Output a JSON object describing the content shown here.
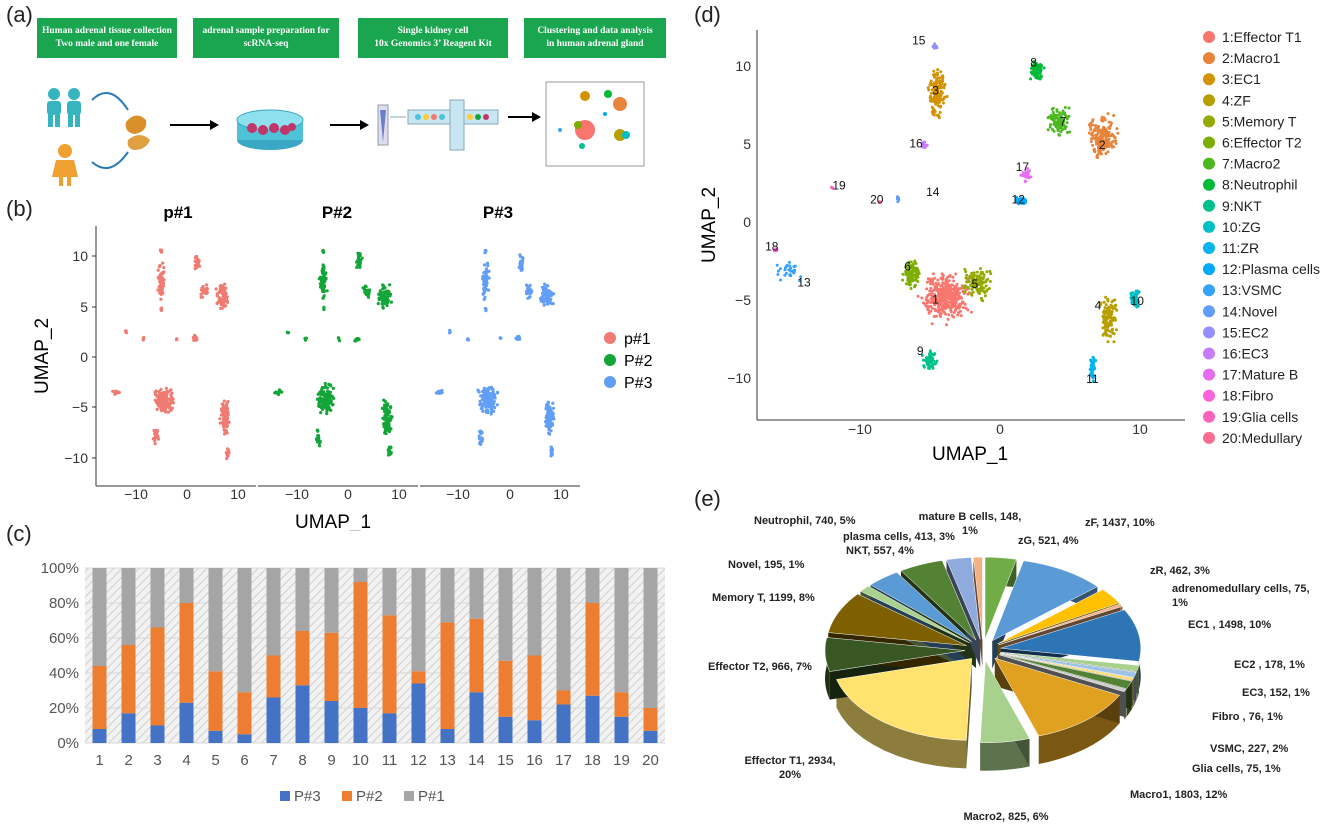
{
  "panels": {
    "a": "(a)",
    "b": "(b)",
    "c": "(c)",
    "d": "(d)",
    "e": "(e)"
  },
  "panel_a": {
    "steps": [
      {
        "line1": "Human adrenal tissue collection",
        "line2": "Two male and one female"
      },
      {
        "line1": "adrenal sample preparation for",
        "line2": "scRNA-seq"
      },
      {
        "line1": "Single kidney cell",
        "line2": "10x Genomics 3’ Reagent Kit"
      },
      {
        "line1": "Clustering and data analysis",
        "line2": "in human adrenal gland"
      }
    ],
    "colors": {
      "box": "#1aa64f",
      "person": "#36b5c0",
      "female": "#f0a030",
      "tissue": "#d9902a",
      "dish": "#4ec3d8",
      "dots": "#c0356a"
    }
  },
  "panel_b": {
    "facets": [
      "p#1",
      "P#2",
      "P#3"
    ],
    "xlabel": "UMAP_1",
    "ylabel": "UMAP_2",
    "xticks": [
      "−10",
      "0",
      "10"
    ],
    "yticks": [
      "10",
      "5",
      "0",
      "−5",
      "−10"
    ],
    "legend": [
      {
        "name": "p#1",
        "color": "#f07b72"
      },
      {
        "name": "P#2",
        "color": "#13a538"
      },
      {
        "name": "P#3",
        "color": "#629ef5"
      }
    ]
  },
  "chart_data": [
    {
      "type": "bar",
      "title": "",
      "stacked": true,
      "categories": [
        "1",
        "2",
        "3",
        "4",
        "5",
        "6",
        "7",
        "8",
        "9",
        "10",
        "11",
        "12",
        "13",
        "14",
        "15",
        "16",
        "17",
        "18",
        "19",
        "20"
      ],
      "series": [
        {
          "name": "P#3",
          "color": "#4472c4",
          "values": [
            8,
            17,
            10,
            23,
            7,
            5,
            26,
            33,
            24,
            20,
            17,
            34,
            8,
            29,
            15,
            13,
            22,
            27,
            15,
            7
          ]
        },
        {
          "name": "P#2",
          "color": "#ed7d31",
          "values": [
            36,
            39,
            56,
            57,
            34,
            24,
            24,
            31,
            39,
            72,
            56,
            7,
            61,
            42,
            32,
            37,
            8,
            53,
            14,
            13
          ]
        },
        {
          "name": "P#1",
          "color": "#a5a5a5",
          "values": [
            56,
            44,
            34,
            20,
            59,
            71,
            50,
            36,
            37,
            8,
            27,
            59,
            31,
            29,
            53,
            50,
            70,
            20,
            71,
            80
          ]
        }
      ],
      "yticks": [
        "0%",
        "20%",
        "40%",
        "60%",
        "80%",
        "100%"
      ],
      "ylim": [
        0,
        100
      ],
      "legend_position": "bottom"
    },
    {
      "type": "pie",
      "title": "",
      "slices": [
        {
          "label": "zG, 521, 4%",
          "value": 521,
          "color": "#70ad47"
        },
        {
          "label": "zF, 1437, 10%",
          "value": 1437,
          "color": "#5b9bd5"
        },
        {
          "label": "zR, 462, 3%",
          "value": 462,
          "color": "#ffc000"
        },
        {
          "label": "adrenomedullary cells, 75, 1%",
          "value": 75,
          "color": "#f4b183"
        },
        {
          "label": "EC1 , 1498, 10%",
          "value": 1498,
          "color": "#2e75b6"
        },
        {
          "label": "EC2 , 178, 1%",
          "value": 178,
          "color": "#a9d18e"
        },
        {
          "label": "EC3, 152, 1%",
          "value": 152,
          "color": "#9dc3e6"
        },
        {
          "label": "Fibro , 76, 1%",
          "value": 76,
          "color": "#ffd966"
        },
        {
          "label": "VSMC, 227, 2%",
          "value": 227,
          "color": "#548235"
        },
        {
          "label": "Glia cells, 75, 1%",
          "value": 75,
          "color": "#c9c9c9"
        },
        {
          "label": "Macro1, 1803, 12%",
          "value": 1803,
          "color": "#e0a020"
        },
        {
          "label": "Macro2, 825, 6%",
          "value": 825,
          "color": "#a9d18e"
        },
        {
          "label": "Effector T1, 2934, 20%",
          "value": 2934,
          "color": "#ffe36e"
        },
        {
          "label": "Effector T2, 966, 7%",
          "value": 966,
          "color": "#385723"
        },
        {
          "label": "Memory T, 1199, 8%",
          "value": 1199,
          "color": "#7f6000"
        },
        {
          "label": "Novel, 195, 1%",
          "value": 195,
          "color": "#a9d18e"
        },
        {
          "label": "NKT, 557, 4%",
          "value": 557,
          "color": "#5b9bd5"
        },
        {
          "label": "Neutrophil, 740, 5%",
          "value": 740,
          "color": "#548235"
        },
        {
          "label": "plasma cells, 413, 3%",
          "value": 413,
          "color": "#8faadc"
        },
        {
          "label": "mature B cells, 148, 1%",
          "value": 148,
          "color": "#f4b183"
        }
      ]
    }
  ],
  "panel_d": {
    "xlabel": "UMAP_1",
    "ylabel": "UMAP_2",
    "xticks": [
      "−10",
      "0",
      "10"
    ],
    "yticks": [
      "10",
      "5",
      "0",
      "−5",
      "−10"
    ],
    "legend": [
      {
        "name": "1:Effector T1",
        "color": "#f8766d"
      },
      {
        "name": "2:Macro1",
        "color": "#e8833a"
      },
      {
        "name": "3:EC1",
        "color": "#d39200"
      },
      {
        "name": "4:ZF",
        "color": "#b79f00"
      },
      {
        "name": "5:Memory T",
        "color": "#93aa00"
      },
      {
        "name": "6:Effector T2",
        "color": "#7cae00"
      },
      {
        "name": "7:Macro2",
        "color": "#4cb81f"
      },
      {
        "name": "8:Neutrophil",
        "color": "#00ba38"
      },
      {
        "name": "9:NKT",
        "color": "#00c08b"
      },
      {
        "name": "10:ZG",
        "color": "#00bfc4"
      },
      {
        "name": "11:ZR",
        "color": "#00b4f0"
      },
      {
        "name": "12:Plasma cells",
        "color": "#00a9ff"
      },
      {
        "name": "13:VSMC",
        "color": "#35a2ff"
      },
      {
        "name": "14:Novel",
        "color": "#619cff"
      },
      {
        "name": "15:EC2",
        "color": "#9590ff"
      },
      {
        "name": "16:EC3",
        "color": "#c77cff"
      },
      {
        "name": "17:Mature B",
        "color": "#e76bf3"
      },
      {
        "name": "18:Fibro",
        "color": "#fa62db"
      },
      {
        "name": "19:Glia cells",
        "color": "#ff62bc"
      },
      {
        "name": "20:Medullary",
        "color": "#ff6c91"
      }
    ],
    "cluster_labels": [
      "1",
      "2",
      "3",
      "4",
      "5",
      "6",
      "7",
      "8",
      "9",
      "10",
      "11",
      "12",
      "13",
      "14",
      "15",
      "16",
      "17",
      "18",
      "19",
      "20"
    ]
  }
}
